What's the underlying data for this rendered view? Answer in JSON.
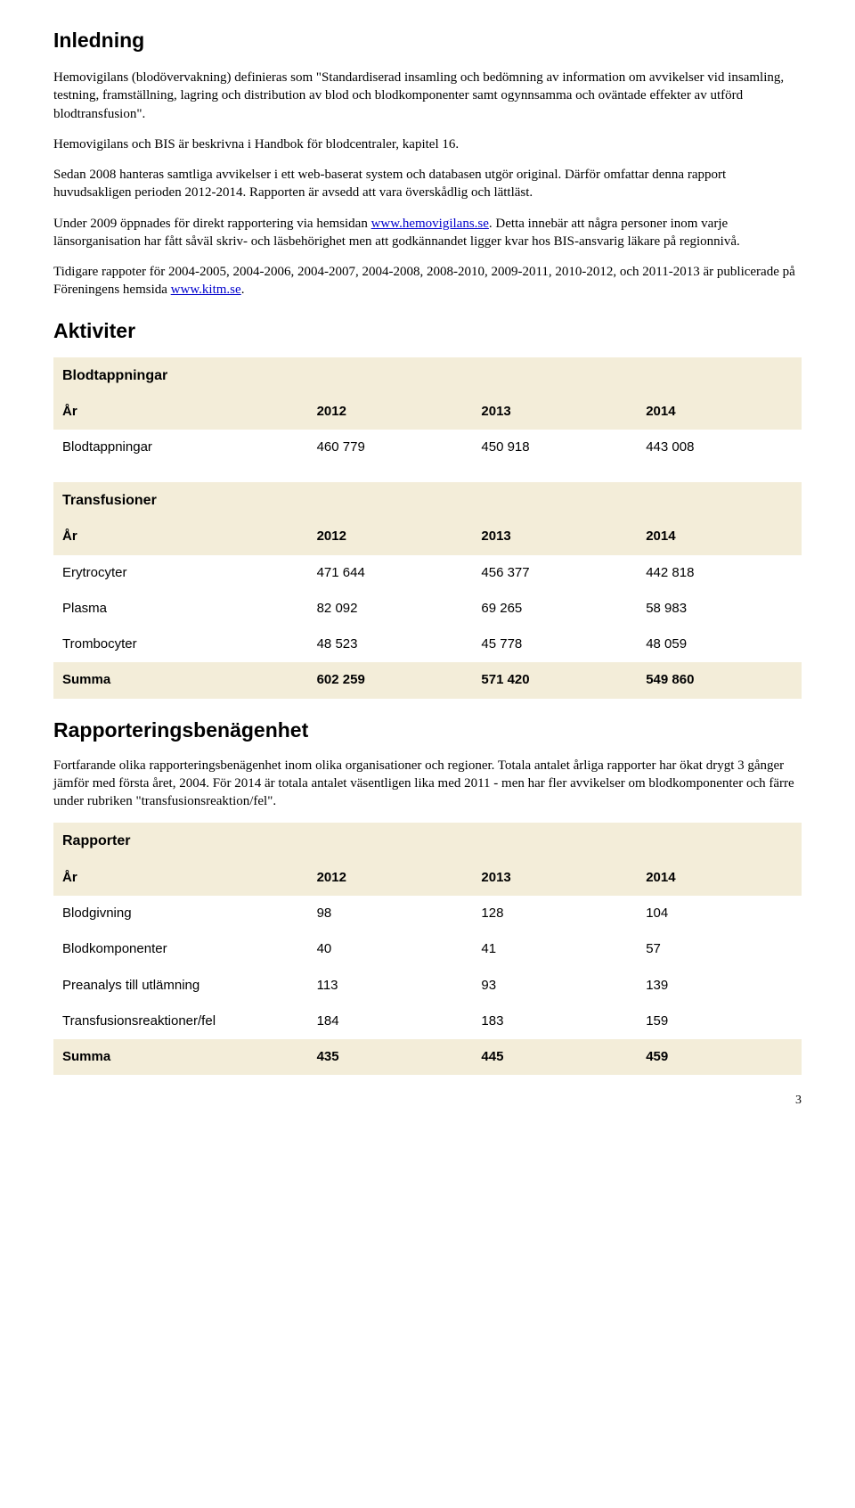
{
  "colors": {
    "body_bg": "#ffffff",
    "text_color": "#000000",
    "link_color": "#0000cc",
    "table_caption_bg": "#f3edd9",
    "table_head_bg": "#f3edd9",
    "table_sum_bg": "#f3edd9",
    "row_bg": "#ffffff"
  },
  "typography": {
    "body_font": "Times New Roman",
    "heading_font": "Arial",
    "table_font": "Arial",
    "h1_size_pt": 17,
    "body_size_pt": 11,
    "table_size_pt": 11
  },
  "headings": {
    "inledning": "Inledning",
    "aktiviter": "Aktiviter",
    "rapporteringsbenagenhet": "Rapporteringsbenägenhet"
  },
  "paragraphs": {
    "p1": "Hemovigilans (blodövervakning) definieras som \"Standardiserad insamling och bedömning av information om avvikelser vid insamling, testning, framställning, lagring och distribution av blod och blodkomponenter samt ogynnsamma och oväntade effekter av utförd blodtransfusion\".",
    "p2": "Hemovigilans och BIS är beskrivna i Handbok för blodcentraler, kapitel 16.",
    "p3": "Sedan 2008 hanteras samtliga avvikelser i ett web-baserat system och databasen utgör original. Därför omfattar denna rapport huvudsakligen perioden 2012-2014. Rapporten är avsedd att vara överskådlig och lättläst.",
    "p4_a": "Under 2009 öppnades för direkt rapportering via hemsidan ",
    "p4_link1": "www.hemovigilans.se",
    "p4_b": ". Detta innebär att några personer inom varje länsorganisation har fått såväl skriv- och läsbehörighet men att godkännandet ligger kvar hos BIS-ansvarig läkare på regionnivå.",
    "p5_a": "Tidigare rappoter för 2004-2005, 2004-2006, 2004-2007, 2004-2008, 2008-2010,  2009-2011,  2010-2012, och 2011-2013 är publicerade på Föreningens hemsida ",
    "p5_link": "www.kitm.se",
    "p5_b": ".",
    "p6": "Fortfarande olika rapporteringsbenägenhet inom olika organisationer och regioner. Totala antalet årliga rapporter har ökat drygt 3 gånger jämför med första året, 2004. För 2014 är totala antalet väsentligen lika med 2011 - men har fler avvikelser om blodkomponenter och färre under rubriken \"transfusionsreaktion/fel\"."
  },
  "tables": {
    "blodtappningar": {
      "caption": "Blodtappningar",
      "year_label": "År",
      "years": [
        "2012",
        "2013",
        "2014"
      ],
      "rows": [
        {
          "label": "Blodtappningar",
          "values": [
            "460 779",
            "450 918",
            "443 008"
          ]
        }
      ]
    },
    "transfusioner": {
      "caption": "Transfusioner",
      "year_label": "År",
      "years": [
        "2012",
        "2013",
        "2014"
      ],
      "rows": [
        {
          "label": "Erytrocyter",
          "values": [
            "471 644",
            "456 377",
            "442 818"
          ]
        },
        {
          "label": "Plasma",
          "values": [
            "82 092",
            "69 265",
            "58 983"
          ]
        },
        {
          "label": "Trombocyter",
          "values": [
            "48 523",
            "45 778",
            "48 059"
          ]
        }
      ],
      "sum": {
        "label": "Summa",
        "values": [
          "602 259",
          "571 420",
          "549 860"
        ]
      }
    },
    "rapporter": {
      "caption": "Rapporter",
      "year_label": "År",
      "years": [
        "2012",
        "2013",
        "2014"
      ],
      "rows": [
        {
          "label": "Blodgivning",
          "values": [
            "98",
            "128",
            "104"
          ]
        },
        {
          "label": "Blodkomponenter",
          "values": [
            "40",
            "41",
            "57"
          ]
        },
        {
          "label": "Preanalys till utlämning",
          "values": [
            "113",
            "93",
            "139"
          ]
        },
        {
          "label": "Transfusionsreaktioner/fel",
          "values": [
            "184",
            "183",
            "159"
          ]
        }
      ],
      "sum": {
        "label": "Summa",
        "values": [
          "435",
          "445",
          "459"
        ]
      }
    }
  },
  "page_number": "3"
}
